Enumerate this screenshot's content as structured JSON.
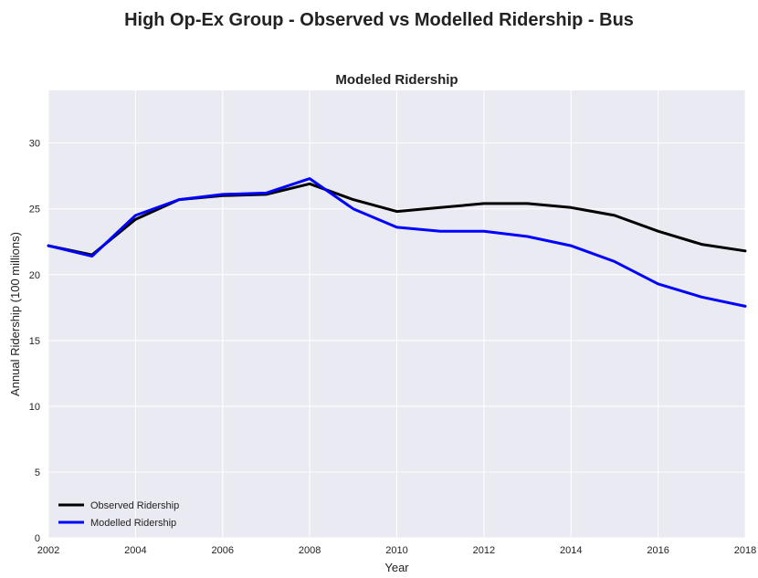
{
  "chart_data": {
    "type": "line",
    "suptitle": "High Op-Ex Group - Observed vs Modelled Ridership - Bus",
    "title": "Modeled Ridership",
    "xlabel": "Year",
    "ylabel": "Annual Ridership (100 millions)",
    "xlim": [
      2002,
      2018
    ],
    "ylim": [
      0,
      34
    ],
    "xticks": [
      "2002",
      "2004",
      "2006",
      "2008",
      "2010",
      "2012",
      "2014",
      "2016",
      "2018"
    ],
    "yticks": [
      "0",
      "5",
      "10",
      "15",
      "20",
      "25",
      "30"
    ],
    "x": [
      2002,
      2003,
      2004,
      2005,
      2006,
      2007,
      2008,
      2009,
      2010,
      2011,
      2012,
      2013,
      2014,
      2015,
      2016,
      2017,
      2018
    ],
    "series": [
      {
        "name": "Observed Ridership",
        "color": "#000000",
        "values": [
          22.2,
          21.5,
          24.2,
          25.7,
          26.0,
          26.1,
          26.9,
          25.7,
          24.8,
          25.1,
          25.4,
          25.4,
          25.1,
          24.5,
          23.3,
          22.3,
          21.8
        ]
      },
      {
        "name": "Modelled Ridership",
        "color": "#0000ff",
        "values": [
          22.2,
          21.4,
          24.5,
          25.7,
          26.1,
          26.2,
          27.3,
          25.0,
          23.6,
          23.3,
          23.3,
          22.9,
          22.2,
          21.0,
          19.3,
          18.3,
          17.6
        ]
      }
    ],
    "grid": true,
    "legend": "lower-left",
    "background": "#eaeaf2"
  }
}
